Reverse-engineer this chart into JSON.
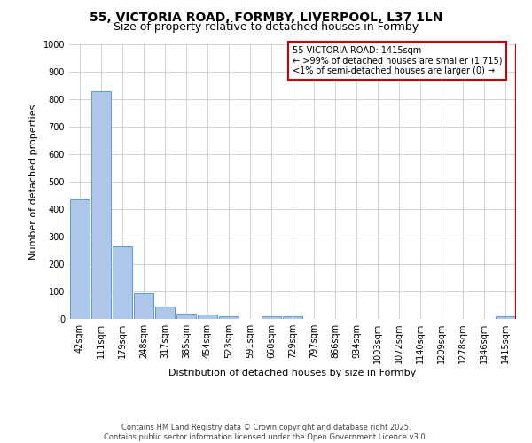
{
  "title1": "55, VICTORIA ROAD, FORMBY, LIVERPOOL, L37 1LN",
  "title2": "Size of property relative to detached houses in Formby",
  "xlabel": "Distribution of detached houses by size in Formby",
  "ylabel": "Number of detached properties",
  "categories": [
    "42sqm",
    "111sqm",
    "179sqm",
    "248sqm",
    "317sqm",
    "385sqm",
    "454sqm",
    "523sqm",
    "591sqm",
    "660sqm",
    "729sqm",
    "797sqm",
    "866sqm",
    "934sqm",
    "1003sqm",
    "1072sqm",
    "1140sqm",
    "1209sqm",
    "1278sqm",
    "1346sqm",
    "1415sqm"
  ],
  "values": [
    435,
    830,
    265,
    95,
    45,
    20,
    15,
    10,
    0,
    10,
    10,
    0,
    0,
    0,
    0,
    0,
    0,
    0,
    0,
    0,
    10
  ],
  "bar_color": "#aec6e8",
  "bar_edge_color": "#5b9bd5",
  "annotation_box_text": "55 VICTORIA ROAD: 1415sqm\n← >99% of detached houses are smaller (1,715)\n<1% of semi-detached houses are larger (0) →",
  "annotation_box_color": "#ffffff",
  "annotation_box_edge_color": "#cc0000",
  "red_line_color": "#cc0000",
  "ylim": [
    0,
    1000
  ],
  "yticks": [
    0,
    100,
    200,
    300,
    400,
    500,
    600,
    700,
    800,
    900,
    1000
  ],
  "grid_color": "#cccccc",
  "background_color": "#ffffff",
  "footer_text": "Contains HM Land Registry data © Crown copyright and database right 2025.\nContains public sector information licensed under the Open Government Licence v3.0.",
  "title_fontsize": 10,
  "subtitle_fontsize": 9,
  "axis_label_fontsize": 8,
  "tick_fontsize": 7,
  "annotation_fontsize": 7,
  "footer_fontsize": 6
}
